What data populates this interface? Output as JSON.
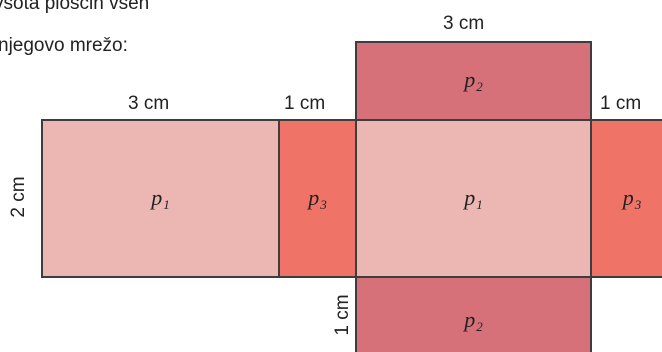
{
  "text": {
    "line1": "vsota ploščin vseh",
    "line2": "njegovo mrežo:"
  },
  "dimensions": {
    "top_width": "3 cm",
    "left_width": "3 cm",
    "mid_width": "1 cm",
    "right_width": "1 cm",
    "left_height": "2 cm",
    "bottom_height": "1 cm"
  },
  "faces": {
    "p1": {
      "letter": "p",
      "sub": "1"
    },
    "p2": {
      "letter": "p",
      "sub": "2"
    },
    "p3": {
      "letter": "p",
      "sub": "3"
    }
  },
  "colors": {
    "p1": "#ecb6b3",
    "p2": "#d6717a",
    "p3": "#f07368",
    "border": "#3d3d3d"
  }
}
